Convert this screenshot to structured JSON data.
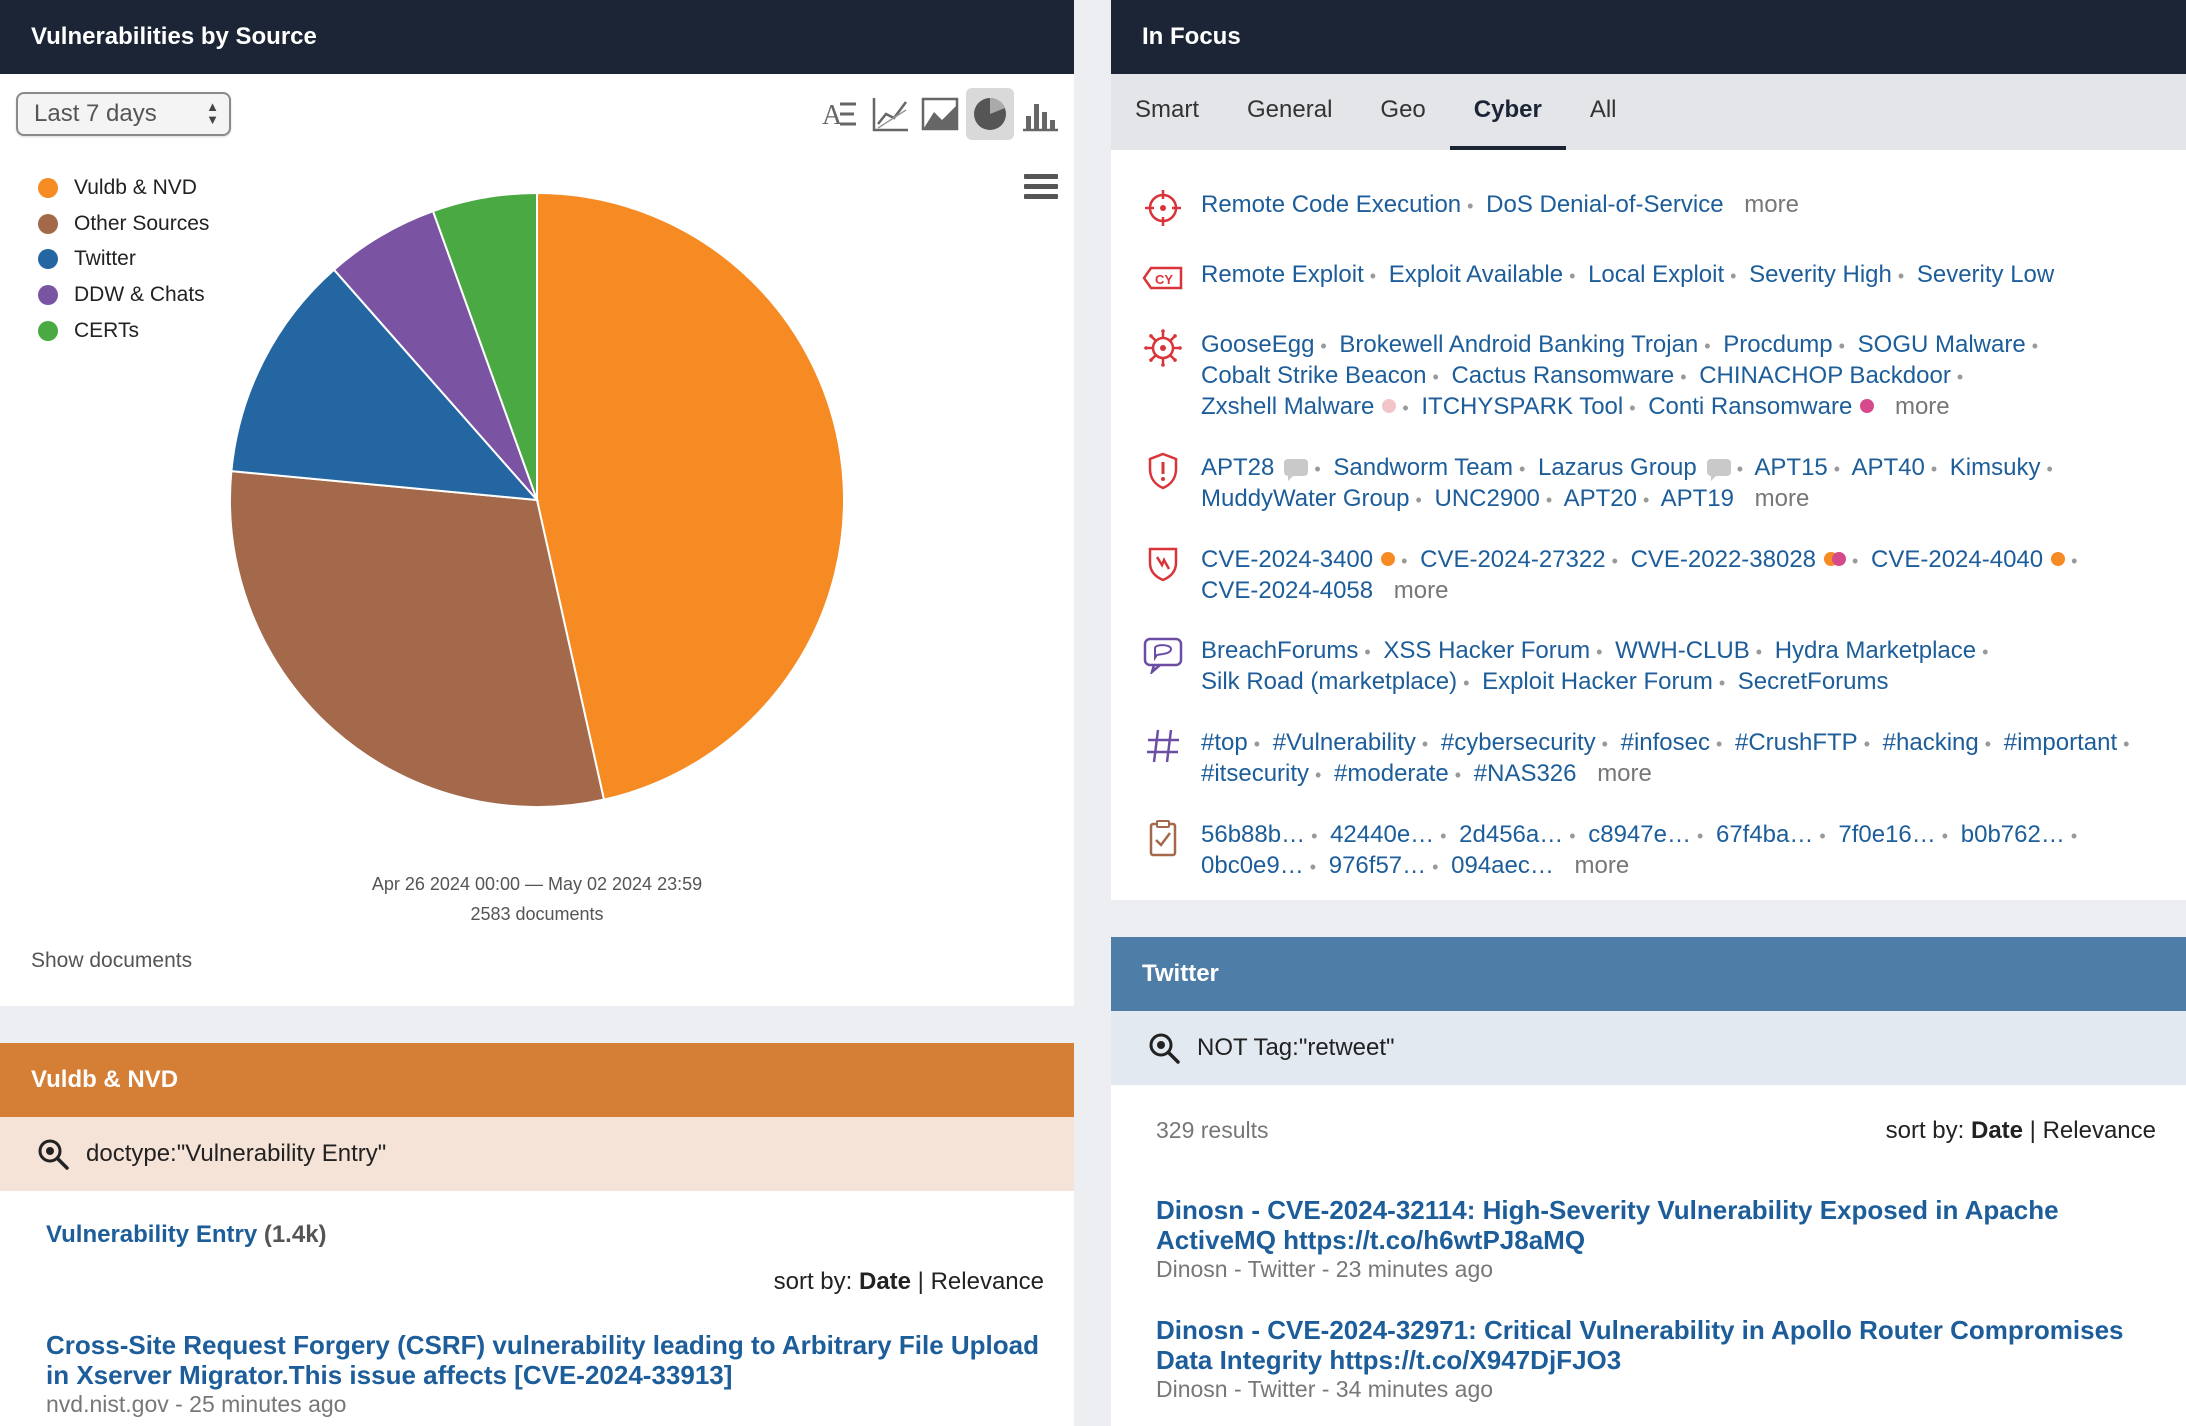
{
  "vuln_panel": {
    "title": "Vulnerabilities by Source",
    "time_range": "Last 7 days",
    "chart_tools": [
      "text-chart-icon",
      "line-chart-icon",
      "area-chart-icon",
      "pie-chart-icon",
      "bar-chart-icon"
    ],
    "active_tool": "pie-chart-icon",
    "date_range": "Apr 26 2024 00:00 — May 02 2024 23:59",
    "doc_count": "2583 documents",
    "show_documents": "Show documents"
  },
  "chart_data": {
    "type": "pie",
    "categories": [
      "Vuldb & NVD",
      "Other Sources",
      "Twitter",
      "DDW & Chats",
      "CERTs"
    ],
    "values": [
      46.5,
      30.0,
      12.0,
      6.0,
      5.5
    ],
    "colors": [
      "#f68a23",
      "#a3694a",
      "#2466a1",
      "#7a53a3",
      "#4ba943"
    ],
    "legend_position": "top-left"
  },
  "vuldb_panel": {
    "title": "Vuldb & NVD",
    "query": "doctype:\"Vulnerability Entry\"",
    "facet_label": "Vulnerability Entry",
    "facet_count": "(1.4k)",
    "sort_prefix": "sort by: ",
    "sort_active": "Date",
    "sort_sep": " | ",
    "sort_other": "Relevance",
    "results": [
      {
        "title": "Cross-Site Request Forgery (CSRF) vulnerability leading to Arbitrary File Upload in Xserver Migrator.This issue affects [CVE-2024-33913]",
        "meta": "nvd.nist.gov - 25 minutes ago"
      }
    ]
  },
  "focus_panel": {
    "title": "In Focus",
    "tabs": [
      "Smart",
      "General",
      "Geo",
      "Cyber",
      "All"
    ],
    "active_tab": "Cyber",
    "more_label": "more",
    "rows": [
      {
        "icon": "crosshair-icon",
        "color": "#d9343a",
        "items": [
          {
            "t": "Remote Code Execution"
          },
          {
            "t": "DoS Denial-of-Service"
          }
        ],
        "more": true
      },
      {
        "icon": "cy-tag-icon",
        "color": "#d9343a",
        "items": [
          {
            "t": "Remote Exploit"
          },
          {
            "t": "Exploit Available"
          },
          {
            "t": "Local Exploit"
          },
          {
            "t": "Severity High"
          },
          {
            "t": "Severity Low"
          }
        ],
        "more": false
      },
      {
        "icon": "virus-icon",
        "color": "#d9343a",
        "items": [
          {
            "t": "GooseEgg"
          },
          {
            "t": "Brokewell Android Banking Trojan"
          },
          {
            "t": "Procdump"
          },
          {
            "t": "SOGU Malware"
          },
          {
            "t": "Cobalt Strike Beacon"
          },
          {
            "t": "Cactus Ransomware"
          },
          {
            "t": "CHINACHOP Backdoor"
          },
          {
            "t": "Zxshell Malware",
            "dot": [
              "#f2c5c9"
            ]
          },
          {
            "t": "ITCHYSPARK Tool"
          },
          {
            "t": "Conti Ransomware",
            "dot": [
              "#d64a8c"
            ]
          }
        ],
        "more": true
      },
      {
        "icon": "alert-shield-icon",
        "color": "#d9343a",
        "items": [
          {
            "t": "APT28",
            "chat": true
          },
          {
            "t": "Sandworm Team"
          },
          {
            "t": "Lazarus Group",
            "chat": true
          },
          {
            "t": "APT15"
          },
          {
            "t": "APT40"
          },
          {
            "t": "Kimsuky"
          },
          {
            "t": "MuddyWater Group"
          },
          {
            "t": "UNC2900"
          },
          {
            "t": "APT20"
          },
          {
            "t": "APT19"
          }
        ],
        "more": true
      },
      {
        "icon": "cve-shield-icon",
        "color": "#d9343a",
        "items": [
          {
            "t": "CVE-2024-3400",
            "dot": [
              "#f68a23"
            ]
          },
          {
            "t": "CVE-2024-27322"
          },
          {
            "t": "CVE-2022-38028",
            "dot": [
              "#f68a23",
              "#d64a8c"
            ]
          },
          {
            "t": "CVE-2024-4040",
            "dot": [
              "#f68a23"
            ]
          },
          {
            "t": "CVE-2024-4058"
          }
        ],
        "more": true
      },
      {
        "icon": "forum-chat-icon",
        "color": "#6b4ea3",
        "items": [
          {
            "t": "BreachForums"
          },
          {
            "t": "XSS Hacker Forum"
          },
          {
            "t": "WWH-CLUB"
          },
          {
            "t": "Hydra Marketplace"
          },
          {
            "t": "Silk Road (marketplace)"
          },
          {
            "t": "Exploit Hacker Forum"
          },
          {
            "t": "SecretForums"
          }
        ],
        "more": false
      },
      {
        "icon": "hashtag-icon",
        "color": "#6b4ea3",
        "items": [
          {
            "t": "#top"
          },
          {
            "t": "#Vulnerability"
          },
          {
            "t": "#cybersecurity"
          },
          {
            "t": "#infosec"
          },
          {
            "t": "#CrushFTP"
          },
          {
            "t": "#hacking"
          },
          {
            "t": "#important"
          },
          {
            "t": "#itsecurity"
          },
          {
            "t": "#moderate"
          },
          {
            "t": "#NAS326"
          }
        ],
        "more": true
      },
      {
        "icon": "clipboard-check-icon",
        "color": "#a3694a",
        "items": [
          {
            "t": "56b88b…"
          },
          {
            "t": "42440e…"
          },
          {
            "t": "2d456a…"
          },
          {
            "t": "c8947e…"
          },
          {
            "t": "67f4ba…"
          },
          {
            "t": "7f0e16…"
          },
          {
            "t": "b0b762…"
          },
          {
            "t": "0bc0e9…"
          },
          {
            "t": "976f57…"
          },
          {
            "t": "094aec…"
          }
        ],
        "more": true
      }
    ]
  },
  "twitter_panel": {
    "title": "Twitter",
    "query": "NOT Tag:\"retweet\"",
    "results_count": "329 results",
    "sort_prefix": "sort by: ",
    "sort_active": "Date",
    "sort_sep": " | ",
    "sort_other": "Relevance",
    "results": [
      {
        "title": "Dinosn - CVE-2024-32114: High-Severity Vulnerability Exposed in Apache ActiveMQ https://t.co/h6wtPJ8aMQ",
        "meta": "Dinosn - Twitter - 23 minutes ago"
      },
      {
        "title": "Dinosn - CVE-2024-32971: Critical Vulnerability in Apollo Router Compromises Data Integrity https://t.co/X947DjFJO3",
        "meta": "Dinosn - Twitter - 34 minutes ago"
      }
    ]
  }
}
